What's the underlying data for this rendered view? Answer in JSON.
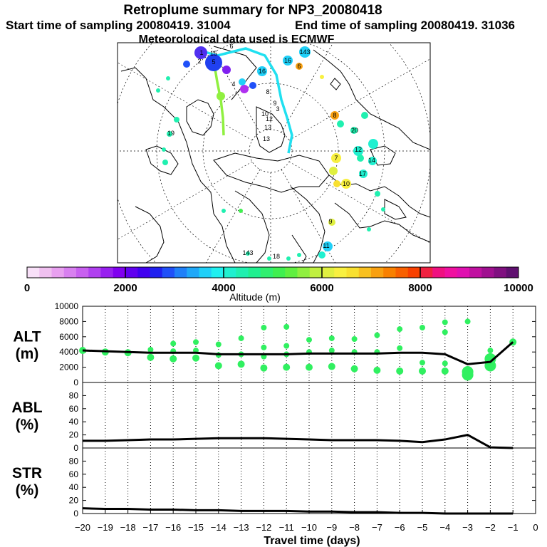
{
  "header": {
    "title": "Retroplume summary for NP3_20080418",
    "start_label": "Start time of sampling 20080419. 31004",
    "end_label": "End time of sampling 20080419. 31036",
    "met_label": "Meteorological data used is ECMWF"
  },
  "colorbar": {
    "colors": [
      "#f8e0f8",
      "#f0c0f0",
      "#e8a0f0",
      "#d880f0",
      "#c860f0",
      "#b040f0",
      "#9820f0",
      "#8000f0",
      "#6000f0",
      "#4000f0",
      "#2020f0",
      "#2050f8",
      "#2080f8",
      "#20a8f8",
      "#20d0f8",
      "#20f0f0",
      "#20f0d0",
      "#20f0b0",
      "#20f090",
      "#30f070",
      "#40f050",
      "#60f040",
      "#90f040",
      "#c0f040",
      "#e0f040",
      "#f8f040",
      "#f8e030",
      "#f8c020",
      "#f8a010",
      "#f88000",
      "#f86000",
      "#f84000",
      "#f02040",
      "#f01080",
      "#f010a0",
      "#e010b0",
      "#c010a0",
      "#a01090",
      "#801080",
      "#601070"
    ],
    "tick_labels": [
      "0",
      "2000",
      "4000",
      "6000",
      "8000",
      "10000"
    ],
    "tick_values": [
      0,
      2000,
      4000,
      6000,
      8000,
      10000
    ],
    "label": "Altitude (m)"
  },
  "map": {
    "labels": [
      "1",
      "2",
      "3",
      "4",
      "5",
      "6",
      "7",
      "8",
      "9",
      "10",
      "11",
      "12",
      "13",
      "14",
      "15",
      "16",
      "17",
      "18",
      "19",
      "20",
      "143"
    ]
  },
  "chart_data": [
    {
      "type": "line",
      "id": "alt",
      "ylabel_line1": "ALT",
      "ylabel_line2": "(m)",
      "ylim": [
        0,
        10000
      ],
      "yticks": [
        0,
        2000,
        4000,
        6000,
        8000,
        10000
      ],
      "x": [
        -20,
        -19,
        -18,
        -17,
        -16,
        -15,
        -14,
        -13,
        -12,
        -11,
        -10,
        -9,
        -8,
        -7,
        -6,
        -5,
        -4,
        -3,
        -2,
        -1
      ],
      "series": [
        {
          "name": "mean altitude",
          "values": [
            4200,
            4100,
            4000,
            3900,
            3900,
            3900,
            3700,
            3700,
            3700,
            3700,
            3800,
            3800,
            3800,
            3800,
            3900,
            3900,
            3700,
            2400,
            2700,
            5300
          ]
        }
      ],
      "clusters": [
        {
          "x": -20,
          "y": [
            4200
          ]
        },
        {
          "x": -19,
          "y": [
            4000
          ]
        },
        {
          "x": -18,
          "y": [
            3900
          ]
        },
        {
          "x": -17,
          "y": [
            4300,
            3300
          ]
        },
        {
          "x": -16,
          "y": [
            5100,
            4100,
            3100
          ]
        },
        {
          "x": -15,
          "y": [
            5300,
            4200,
            3200
          ]
        },
        {
          "x": -14,
          "y": [
            5000,
            3600,
            2200
          ]
        },
        {
          "x": -13,
          "y": [
            5800,
            3700,
            2400
          ]
        },
        {
          "x": -12,
          "y": [
            7200,
            4600,
            3400,
            1900
          ]
        },
        {
          "x": -11,
          "y": [
            7300,
            4800,
            3700,
            2000
          ]
        },
        {
          "x": -10,
          "y": [
            5600,
            4000,
            2000
          ]
        },
        {
          "x": -9,
          "y": [
            5800,
            4200,
            2100
          ]
        },
        {
          "x": -8,
          "y": [
            5700,
            4000,
            1800
          ]
        },
        {
          "x": -7,
          "y": [
            6200,
            4000,
            1600
          ]
        },
        {
          "x": -6,
          "y": [
            7000,
            4500,
            1500
          ]
        },
        {
          "x": -5,
          "y": [
            7200,
            2600,
            1500
          ]
        },
        {
          "x": -4,
          "y": [
            7900,
            6600,
            2500,
            1500
          ]
        },
        {
          "x": -3,
          "y": [
            8000,
            1400,
            1000
          ]
        },
        {
          "x": -2,
          "y": [
            4200,
            3100,
            2200
          ]
        },
        {
          "x": -1,
          "y": [
            5300
          ]
        }
      ]
    },
    {
      "type": "line",
      "id": "abl",
      "ylabel_line1": "ABL",
      "ylabel_line2": "(%)",
      "ylim": [
        0,
        100
      ],
      "yticks": [
        0,
        20,
        40,
        60,
        80
      ],
      "x": [
        -20,
        -19,
        -18,
        -17,
        -16,
        -15,
        -14,
        -13,
        -12,
        -11,
        -10,
        -9,
        -8,
        -7,
        -6,
        -5,
        -4,
        -3,
        -2,
        -1
      ],
      "series": [
        {
          "name": "ABL fraction",
          "values": [
            11,
            11,
            12,
            13,
            13,
            14,
            15,
            15,
            15,
            14,
            13,
            12,
            12,
            12,
            11,
            9,
            13,
            20,
            1,
            0
          ]
        }
      ]
    },
    {
      "type": "line",
      "id": "str",
      "ylabel_line1": "STR",
      "ylabel_line2": "(%)",
      "ylim": [
        0,
        100
      ],
      "yticks": [
        0,
        20,
        40,
        60,
        80
      ],
      "x": [
        -20,
        -19,
        -18,
        -17,
        -16,
        -15,
        -14,
        -13,
        -12,
        -11,
        -10,
        -9,
        -8,
        -7,
        -6,
        -5,
        -4,
        -3,
        -2,
        -1
      ],
      "series": [
        {
          "name": "STR fraction",
          "values": [
            8,
            7,
            7,
            6,
            6,
            5,
            5,
            4,
            4,
            4,
            3,
            3,
            2,
            2,
            1,
            1,
            0,
            0,
            0,
            0
          ]
        }
      ],
      "xlim": [
        -20,
        0
      ],
      "xticks": [
        -20,
        -19,
        -18,
        -17,
        -16,
        -15,
        -14,
        -13,
        -12,
        -11,
        -10,
        -9,
        -8,
        -7,
        -6,
        -5,
        -4,
        -3,
        -2,
        -1,
        0
      ],
      "xlabel": "Travel time (days)"
    }
  ]
}
